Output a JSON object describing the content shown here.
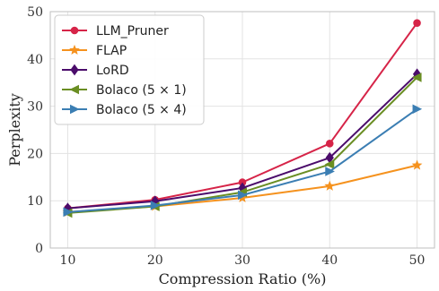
{
  "chart_data": {
    "type": "line",
    "xlabel": "Compression Ratio (%)",
    "ylabel": "Perplexity",
    "x": [
      10,
      20,
      30,
      40,
      50
    ],
    "xticks": [
      "10",
      "20",
      "30",
      "40",
      "50"
    ],
    "xlim": [
      8,
      52
    ],
    "ylim": [
      0,
      50
    ],
    "yticks": [
      "0",
      "10",
      "20",
      "30",
      "40",
      "50"
    ],
    "grid": true,
    "legend_position": "top-left",
    "series": [
      {
        "name": "LLM_Pruner",
        "color": "#d62448",
        "marker": "circle",
        "values": [
          8.4,
          10.2,
          13.9,
          22.1,
          47.6
        ]
      },
      {
        "name": "FLAP",
        "color": "#f5921e",
        "marker": "star",
        "values": [
          7.6,
          8.8,
          10.6,
          13.1,
          17.5
        ]
      },
      {
        "name": "LoRD",
        "color": "#4b0c6b",
        "marker": "diamond",
        "values": [
          8.4,
          9.9,
          12.7,
          19.1,
          36.8
        ]
      },
      {
        "name": "Bolaco (5 × 1)",
        "color": "#6a8e23",
        "marker": "triangle-left",
        "values": [
          7.4,
          8.8,
          11.8,
          17.7,
          36.1
        ]
      },
      {
        "name": "Bolaco (5 × 4)",
        "color": "#3b7eb3",
        "marker": "triangle-right",
        "values": [
          7.6,
          9.0,
          11.2,
          16.2,
          29.4
        ]
      }
    ]
  }
}
